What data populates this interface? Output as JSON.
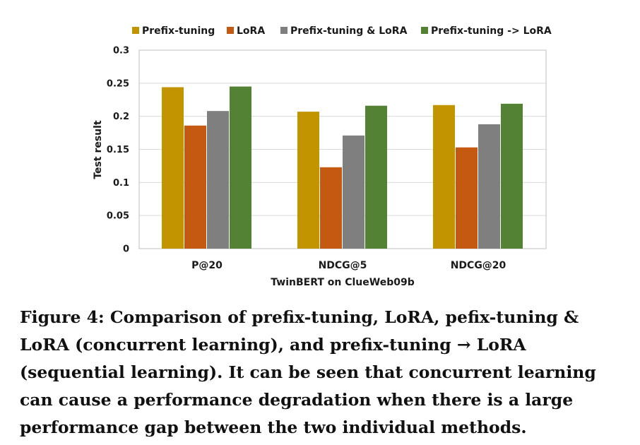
{
  "chart_data": {
    "type": "bar",
    "categories": [
      "P@20",
      "NDCG@5",
      "NDCG@20"
    ],
    "series": [
      {
        "name": "Prefix-tuning",
        "color": "#c29400",
        "values": [
          0.244,
          0.207,
          0.217
        ]
      },
      {
        "name": "LoRA",
        "color": "#c65911",
        "values": [
          0.186,
          0.123,
          0.153
        ]
      },
      {
        "name": "Prefix-tuning & LoRA",
        "color": "#7f7f7f",
        "values": [
          0.208,
          0.171,
          0.188
        ]
      },
      {
        "name": "Prefix-tuning -> LoRA",
        "color": "#548235",
        "values": [
          0.245,
          0.216,
          0.219
        ]
      }
    ],
    "xlabel": "TwinBERT on ClueWeb09b",
    "ylabel": "Test result",
    "ylim": [
      0,
      0.3
    ],
    "yticks": [
      "0",
      "0.05",
      "0.1",
      "0.15",
      "0.2",
      "0.25",
      "0.3"
    ],
    "grid": true,
    "legend": "top"
  },
  "caption": "Figure 4: Comparison of prefix-tuning, LoRA, pefix-tuning & LoRA (concurrent learning), and prefix-tuning → LoRA (sequential learning). It can be seen that concurrent learning can cause a performance degradation when there is a large performance gap between the two individual methods."
}
